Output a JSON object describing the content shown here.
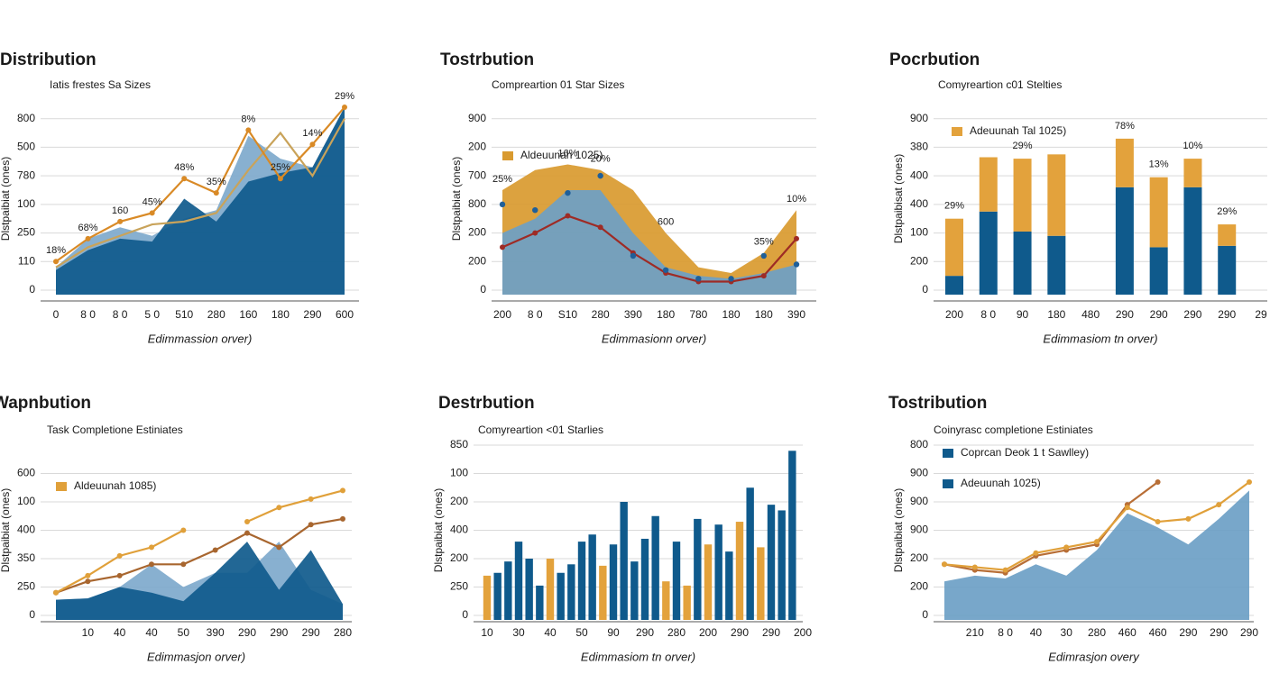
{
  "chart_data": [
    {
      "type": "combo",
      "title": "Distribution",
      "subtitle": "Iatis frestes Sa Sizes",
      "y_label": "Dlstpaibiat (ones)",
      "x_label": "Edimmassion orver)",
      "categories": [
        "0",
        "8 0",
        "8 0",
        "5 0",
        "510",
        "280",
        "160",
        "180",
        "290",
        "600"
      ],
      "ylim": [
        0,
        6.4
      ],
      "yticks": [
        0,
        {
          "value": 1,
          "label": "110"
        },
        {
          "value": 2,
          "label": "250"
        },
        {
          "value": 3,
          "label": "100"
        },
        {
          "value": 4,
          "label": "780"
        },
        {
          "value": 5,
          "label": "500"
        },
        {
          "value": 6,
          "label": "800"
        }
      ],
      "grid": true,
      "series": [
        {
          "type": "area",
          "color": "#7ea9cc",
          "values": [
            0.8,
            1.8,
            2.2,
            1.9,
            2.5,
            2.8,
            5.4,
            4.6,
            4.3,
            6.4
          ]
        },
        {
          "type": "area",
          "color": "#0f5a8c",
          "values": [
            0.7,
            1.4,
            1.8,
            1.7,
            3.2,
            2.4,
            3.8,
            4.1,
            4.3,
            6.4
          ]
        },
        {
          "type": "line",
          "color": "#c9a35a",
          "values": [
            0.8,
            1.5,
            1.9,
            2.3,
            2.4,
            2.7,
            4.2,
            5.5,
            4.0,
            6.0
          ]
        },
        {
          "type": "line",
          "color": "#d98a26",
          "markers": true,
          "values": [
            1.0,
            1.8,
            2.4,
            2.7,
            3.9,
            3.4,
            5.6,
            3.9,
            5.1,
            6.4
          ],
          "value_labels": [
            "18%",
            "68%",
            "160",
            "45%",
            "48%",
            "35%",
            "8%",
            "25%",
            "14%",
            "29%"
          ]
        }
      ]
    },
    {
      "type": "combo",
      "title": "Tostrbution",
      "subtitle": "Compreartion 01 Star Sizes",
      "y_label": "Dlstpaibiat (ones)",
      "x_label": "Edimmasionn orver)",
      "categories": [
        "200",
        "8 0",
        "S10",
        "280",
        "390",
        "180",
        "780",
        "180",
        "180",
        "390"
      ],
      "ylim": [
        0,
        6.4
      ],
      "yticks": [
        0,
        {
          "value": 1,
          "label": "200"
        },
        {
          "value": 2,
          "label": "200"
        },
        {
          "value": 3,
          "label": "800"
        },
        {
          "value": 4,
          "label": "700"
        },
        {
          "value": 5,
          "label": "200"
        },
        {
          "value": 6,
          "label": "900"
        }
      ],
      "grid": true,
      "legend": [
        {
          "name": "Aldeuunah 1025)",
          "color": "#d99a2f"
        }
      ],
      "series": [
        {
          "type": "area",
          "color": "#d99a2f",
          "values": [
            3.5,
            4.2,
            4.4,
            4.2,
            3.5,
            2.0,
            0.8,
            0.6,
            1.3,
            2.8
          ],
          "value_labels": [
            "25%",
            null,
            "16%",
            "20%",
            null,
            "600",
            null,
            null,
            "35%",
            "10%"
          ]
        },
        {
          "type": "area",
          "color": "#6d9fc6",
          "values": [
            2.0,
            2.5,
            3.5,
            3.5,
            2.0,
            0.8,
            0.5,
            0.4,
            0.6,
            0.9
          ]
        },
        {
          "type": "line",
          "color": "#9e2b25",
          "markers": true,
          "values": [
            1.5,
            2.0,
            2.6,
            2.2,
            1.3,
            0.6,
            0.3,
            0.3,
            0.5,
            1.8
          ]
        },
        {
          "type": "dots",
          "color": "#1f5f99",
          "values": [
            3.0,
            2.8,
            3.4,
            4.0,
            1.2,
            0.7,
            0.4,
            0.4,
            1.2,
            0.9
          ]
        }
      ]
    },
    {
      "type": "combo",
      "title": "Pocrbution",
      "subtitle": "Comyreartion c01 Stelties",
      "y_label": "Dlstpaibisat (ones)",
      "x_label": "Edimmasiom tn orver)",
      "categories": [
        "200",
        "8 0",
        "90",
        "180",
        "480",
        "290",
        "290",
        "290",
        "290",
        "29"
      ],
      "stacked": true,
      "ylim": [
        0,
        6.4
      ],
      "yticks": [
        0,
        {
          "value": 1,
          "label": "200"
        },
        {
          "value": 2,
          "label": "100"
        },
        {
          "value": 3,
          "label": "400"
        },
        {
          "value": 4,
          "label": "400"
        },
        {
          "value": 5,
          "label": "380"
        },
        {
          "value": 6,
          "label": "900"
        }
      ],
      "grid": true,
      "legend": [
        {
          "name": "Adeuunah Tal 1025)",
          "color": "#e3a23c"
        }
      ],
      "series": [
        {
          "type": "bar",
          "color": "#0f5a8c",
          "values": [
            0.5,
            2.75,
            2.05,
            1.9,
            null,
            3.6,
            1.5,
            3.6,
            1.55,
            null
          ]
        },
        {
          "type": "bar",
          "color": "#e3a23c",
          "values": [
            2.0,
            1.9,
            2.55,
            2.85,
            null,
            1.7,
            2.45,
            1.0,
            0.75,
            null
          ],
          "value_labels": [
            "29%",
            null,
            "29%",
            null,
            null,
            "78%",
            "13%",
            "10%",
            "29%",
            null
          ]
        }
      ]
    },
    {
      "type": "combo",
      "title": "Wapnbution",
      "subtitle": "Task Completione Estiniates",
      "y_label": "Dlstpaibiat (ones)",
      "x_label": "Edimmasjon orver)",
      "categories": [
        null,
        "10",
        "40",
        "40",
        "50",
        "390",
        "290",
        "290",
        "290",
        "280"
      ],
      "ylim": [
        0,
        6
      ],
      "yticks": [
        0,
        {
          "value": 1,
          "label": "250"
        },
        {
          "value": 2,
          "label": "350"
        },
        {
          "value": 3,
          "label": "400"
        },
        {
          "value": 4,
          "label": "100"
        },
        {
          "value": 5,
          "label": "600"
        }
      ],
      "grid": true,
      "legend": [
        {
          "name": "Aldeuunah 1085)",
          "color": "#e0a03a"
        }
      ],
      "series": [
        {
          "type": "area",
          "color": "#7ea9cc",
          "values": [
            0.55,
            0.6,
            1.0,
            1.8,
            1.0,
            1.5,
            1.5,
            2.6,
            0.9,
            0.4
          ]
        },
        {
          "type": "area",
          "color": "#0f5a8c",
          "values": [
            0.55,
            0.6,
            1.0,
            0.8,
            0.5,
            1.5,
            2.6,
            0.9,
            2.3,
            0.4
          ]
        },
        {
          "type": "line",
          "color": "#a8662f",
          "markers": true,
          "values": [
            0.8,
            1.2,
            1.4,
            1.8,
            1.8,
            2.3,
            2.9,
            2.4,
            3.2,
            3.4
          ]
        },
        {
          "type": "line",
          "color": "#e0a03a",
          "markers": true,
          "values": [
            0.8,
            1.4,
            2.1,
            2.4,
            3.0,
            null,
            3.3,
            3.8,
            4.1,
            4.4
          ]
        }
      ]
    },
    {
      "type": "combo",
      "title": "Destrbution",
      "subtitle": "Comyreartion <01 Starlies",
      "y_label": "Dlstpaibiat (ones)",
      "x_label": "Edimmasiom tn orver)",
      "categories": [
        "10",
        null,
        null,
        "30",
        null,
        null,
        "40",
        null,
        null,
        "50",
        null,
        null,
        "90",
        null,
        null,
        "290",
        null,
        null,
        "280",
        null,
        null,
        "200",
        null,
        null,
        "290",
        null,
        null,
        "290",
        null,
        null,
        "200"
      ],
      "ylim": [
        0,
        6
      ],
      "yticks": [
        0,
        {
          "value": 1,
          "label": "250"
        },
        {
          "value": 2,
          "label": "200"
        },
        {
          "value": 3,
          "label": "400"
        },
        {
          "value": 4,
          "label": "200"
        },
        {
          "value": 5,
          "label": "100"
        },
        {
          "value": 6,
          "label": "850"
        }
      ],
      "grid": true,
      "series": [
        {
          "type": "bar",
          "color": "#0f5a8c",
          "values": [
            null,
            1.5,
            1.9,
            2.6,
            2.0,
            1.05,
            null,
            1.5,
            1.8,
            2.6,
            2.85,
            null,
            2.5,
            4.0,
            1.9,
            2.7,
            3.5,
            null,
            2.6,
            null,
            3.4,
            null,
            3.2,
            2.25,
            null,
            4.5,
            null,
            3.9,
            3.7,
            5.8,
            null
          ]
        },
        {
          "type": "bar",
          "color": "#e3a23c",
          "values": [
            1.4,
            null,
            null,
            null,
            null,
            null,
            2.0,
            null,
            null,
            null,
            null,
            1.75,
            null,
            null,
            null,
            null,
            null,
            1.2,
            null,
            1.05,
            null,
            2.5,
            null,
            null,
            3.3,
            null,
            2.4,
            null,
            null,
            null,
            null
          ]
        }
      ]
    },
    {
      "type": "combo",
      "title": "Tostribution",
      "subtitle": "Coinyrasc completione Estiniates",
      "y_label": "Dlstpaibiat (ones)",
      "x_label": "Edimrasjon overy",
      "categories": [
        null,
        "210",
        "8 0",
        "40",
        "30",
        "280",
        "460",
        "460",
        "290",
        "290",
        "290"
      ],
      "ylim": [
        0,
        6
      ],
      "yticks": [
        0,
        {
          "value": 1,
          "label": "200"
        },
        {
          "value": 2,
          "label": "200"
        },
        {
          "value": 3,
          "label": "900"
        },
        {
          "value": 4,
          "label": "900"
        },
        {
          "value": 5,
          "label": "900"
        },
        {
          "value": 6,
          "label": "800"
        }
      ],
      "grid": true,
      "legend": [
        {
          "name": "Coprcan Deok 1 t Sawlley)",
          "color": "#0f5a8c"
        },
        {
          "name": "Adeuunah 1025)",
          "color": "#0f5a8c"
        }
      ],
      "series": [
        {
          "type": "area",
          "color": "#6d9fc6",
          "values": [
            1.2,
            1.4,
            1.3,
            1.8,
            1.4,
            2.3,
            3.6,
            3.1,
            2.5,
            3.4,
            4.4
          ]
        },
        {
          "type": "line",
          "color": "#b86e36",
          "markers": true,
          "values": [
            1.8,
            1.6,
            1.5,
            2.1,
            2.3,
            2.5,
            3.9,
            4.7,
            null,
            null,
            null
          ]
        },
        {
          "type": "line",
          "color": "#e0a03a",
          "markers": true,
          "values": [
            1.8,
            1.7,
            1.6,
            2.2,
            2.4,
            2.6,
            3.8,
            3.3,
            3.4,
            3.9,
            4.7
          ]
        }
      ]
    }
  ]
}
